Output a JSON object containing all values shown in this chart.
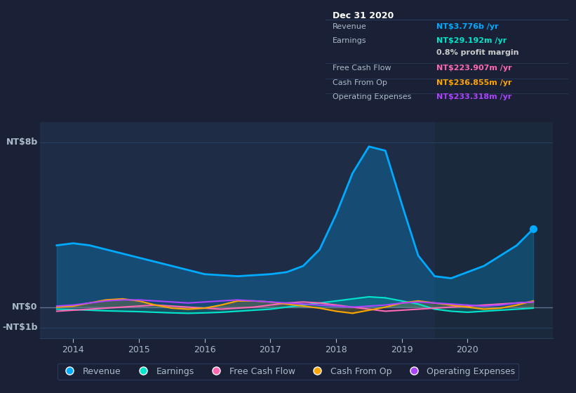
{
  "bg_color": "#1a2035",
  "plot_bg_color": "#1e2d45",
  "grid_color": "#2a3f5f",
  "text_color": "#aabbcc",
  "yticks_labels": [
    "NT$8b",
    "NT$0",
    "-NT$1b"
  ],
  "yticks_values": [
    8000000000,
    0,
    -1000000000
  ],
  "ylim": [
    -1500000000,
    9000000000
  ],
  "xlim_start": 2013.5,
  "xlim_end": 2021.3,
  "xticks": [
    2014,
    2015,
    2016,
    2017,
    2018,
    2019,
    2020
  ],
  "highlight_start": 2019.5,
  "highlight_end": 2021.3,
  "series": {
    "Revenue": {
      "color": "#00aaff",
      "fill_color": "#00aaff",
      "fill_alpha": 0.25,
      "x": [
        2013.75,
        2014.0,
        2014.25,
        2014.5,
        2014.75,
        2015.0,
        2015.25,
        2015.5,
        2015.75,
        2016.0,
        2016.25,
        2016.5,
        2016.75,
        2017.0,
        2017.25,
        2017.5,
        2017.75,
        2018.0,
        2018.25,
        2018.5,
        2018.75,
        2019.0,
        2019.25,
        2019.5,
        2019.75,
        2020.0,
        2020.25,
        2020.5,
        2020.75,
        2021.0
      ],
      "y": [
        3000000000,
        3100000000,
        3000000000,
        2800000000,
        2600000000,
        2400000000,
        2200000000,
        2000000000,
        1800000000,
        1600000000,
        1550000000,
        1500000000,
        1550000000,
        1600000000,
        1700000000,
        2000000000,
        2800000000,
        4500000000,
        6500000000,
        7800000000,
        7600000000,
        5000000000,
        2500000000,
        1500000000,
        1400000000,
        1700000000,
        2000000000,
        2500000000,
        3000000000,
        3800000000
      ]
    },
    "Earnings": {
      "color": "#00e5cc",
      "fill_color": "#00e5cc",
      "fill_alpha": 0.18,
      "x": [
        2013.75,
        2014.0,
        2014.25,
        2014.5,
        2014.75,
        2015.0,
        2015.25,
        2015.5,
        2015.75,
        2016.0,
        2016.25,
        2016.5,
        2016.75,
        2017.0,
        2017.25,
        2017.5,
        2017.75,
        2018.0,
        2018.25,
        2018.5,
        2018.75,
        2019.0,
        2019.25,
        2019.5,
        2019.75,
        2020.0,
        2020.25,
        2020.5,
        2020.75,
        2021.0
      ],
      "y": [
        -100000000,
        -120000000,
        -150000000,
        -180000000,
        -200000000,
        -220000000,
        -250000000,
        -280000000,
        -300000000,
        -280000000,
        -250000000,
        -200000000,
        -150000000,
        -100000000,
        0,
        100000000,
        200000000,
        300000000,
        400000000,
        500000000,
        450000000,
        300000000,
        150000000,
        -100000000,
        -200000000,
        -250000000,
        -200000000,
        -150000000,
        -100000000,
        -50000000
      ]
    },
    "FreeCashFlow": {
      "color": "#ff69b4",
      "x": [
        2013.75,
        2014.0,
        2014.25,
        2014.5,
        2014.75,
        2015.0,
        2015.25,
        2015.5,
        2015.75,
        2016.0,
        2016.25,
        2016.5,
        2016.75,
        2017.0,
        2017.25,
        2017.5,
        2017.75,
        2018.0,
        2018.25,
        2018.5,
        2018.75,
        2019.0,
        2019.25,
        2019.5,
        2019.75,
        2020.0,
        2020.25,
        2020.5,
        2020.75,
        2021.0
      ],
      "y": [
        -200000000,
        -150000000,
        -100000000,
        -50000000,
        0,
        50000000,
        100000000,
        50000000,
        0,
        -50000000,
        -100000000,
        -50000000,
        0,
        100000000,
        200000000,
        250000000,
        200000000,
        100000000,
        0,
        -100000000,
        -200000000,
        -150000000,
        -100000000,
        -50000000,
        0,
        50000000,
        100000000,
        150000000,
        200000000,
        250000000
      ]
    },
    "CashFromOp": {
      "color": "#ffa500",
      "fill_color": "#ffa500",
      "fill_alpha": 0.18,
      "x": [
        2013.75,
        2014.0,
        2014.25,
        2014.5,
        2014.75,
        2015.0,
        2015.25,
        2015.5,
        2015.75,
        2016.0,
        2016.25,
        2016.5,
        2016.75,
        2017.0,
        2017.25,
        2017.5,
        2017.75,
        2018.0,
        2018.25,
        2018.5,
        2018.75,
        2019.0,
        2019.25,
        2019.5,
        2019.75,
        2020.0,
        2020.25,
        2020.5,
        2020.75,
        2021.0
      ],
      "y": [
        0,
        50000000,
        200000000,
        350000000,
        400000000,
        300000000,
        100000000,
        -50000000,
        -100000000,
        -50000000,
        100000000,
        300000000,
        300000000,
        250000000,
        150000000,
        50000000,
        -50000000,
        -200000000,
        -300000000,
        -150000000,
        0,
        200000000,
        300000000,
        200000000,
        100000000,
        0,
        -100000000,
        -50000000,
        100000000,
        300000000
      ]
    },
    "OperatingExpenses": {
      "color": "#aa44ff",
      "x": [
        2013.75,
        2014.0,
        2014.25,
        2014.5,
        2014.75,
        2015.0,
        2015.25,
        2015.5,
        2015.75,
        2016.0,
        2016.25,
        2016.5,
        2016.75,
        2017.0,
        2017.25,
        2017.5,
        2017.75,
        2018.0,
        2018.25,
        2018.5,
        2018.75,
        2019.0,
        2019.25,
        2019.5,
        2019.75,
        2020.0,
        2020.25,
        2020.5,
        2020.75,
        2021.0
      ],
      "y": [
        50000000,
        100000000,
        200000000,
        300000000,
        350000000,
        350000000,
        300000000,
        250000000,
        200000000,
        250000000,
        300000000,
        350000000,
        300000000,
        250000000,
        200000000,
        150000000,
        100000000,
        50000000,
        0,
        50000000,
        100000000,
        200000000,
        250000000,
        200000000,
        150000000,
        100000000,
        50000000,
        100000000,
        200000000,
        250000000
      ]
    }
  },
  "tooltip": {
    "bg": "#0a0f1e",
    "title": "Dec 31 2020",
    "rows": [
      {
        "label": "Revenue",
        "value": "NT$3.776b /yr",
        "label_color": "#aabbcc",
        "value_color": "#00aaff",
        "separator_below": false
      },
      {
        "label": "Earnings",
        "value": "NT$29.192m /yr",
        "label_color": "#aabbcc",
        "value_color": "#00e5cc",
        "separator_below": false
      },
      {
        "label": "",
        "value": "0.8% profit margin",
        "label_color": "#aabbcc",
        "value_color": "#cccccc",
        "separator_below": true
      },
      {
        "label": "Free Cash Flow",
        "value": "NT$223.907m /yr",
        "label_color": "#aabbcc",
        "value_color": "#ff69b4",
        "separator_below": true
      },
      {
        "label": "Cash From Op",
        "value": "NT$236.855m /yr",
        "label_color": "#aabbcc",
        "value_color": "#ffa500",
        "separator_below": true
      },
      {
        "label": "Operating Expenses",
        "value": "NT$233.318m /yr",
        "label_color": "#aabbcc",
        "value_color": "#aa44ff",
        "separator_below": false
      }
    ]
  },
  "legend": [
    {
      "label": "Revenue",
      "color": "#00aaff"
    },
    {
      "label": "Earnings",
      "color": "#00e5cc"
    },
    {
      "label": "Free Cash Flow",
      "color": "#ff69b4"
    },
    {
      "label": "Cash From Op",
      "color": "#ffa500"
    },
    {
      "label": "Operating Expenses",
      "color": "#aa44ff"
    }
  ]
}
